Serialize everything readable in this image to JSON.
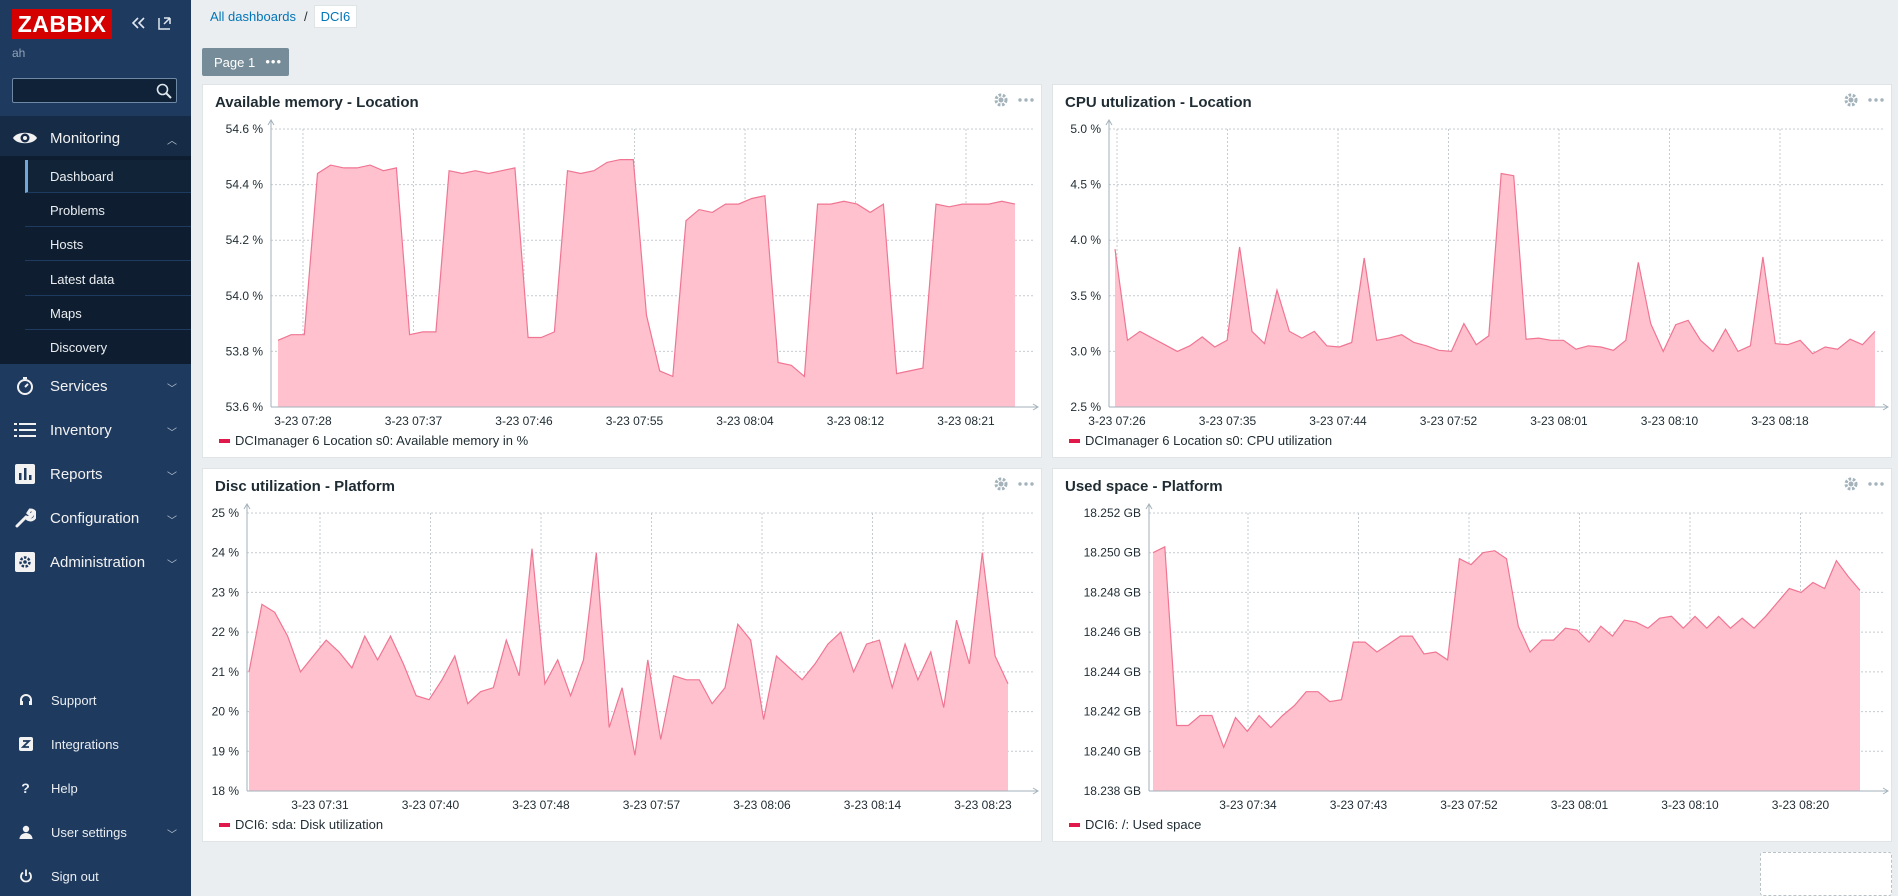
{
  "sidebar": {
    "logo": "ZABBIX",
    "user": "ah",
    "search_placeholder": "",
    "monitoring_label": "Monitoring",
    "submenu": [
      "Dashboard",
      "Problems",
      "Hosts",
      "Latest data",
      "Maps",
      "Discovery"
    ],
    "menu": [
      "Services",
      "Inventory",
      "Reports",
      "Configuration",
      "Administration"
    ],
    "bottom": [
      "Support",
      "Integrations",
      "Help",
      "User settings",
      "Sign out"
    ]
  },
  "breadcrumb": {
    "root": "All dashboards",
    "separator": "/",
    "current": "DCI6"
  },
  "page_tab": {
    "label": "Page 1",
    "menu": "•••"
  },
  "colors": {
    "series": "#e0194a",
    "fill": "#ffc1ce",
    "stroke": "#f07592"
  },
  "widgets": [
    {
      "title": "Available memory - Location",
      "legend": "DCImanager 6 Location s0: Available memory in %"
    },
    {
      "title": "CPU utulization - Location",
      "legend": "DCImanager 6 Location s0: CPU utilization"
    },
    {
      "title": "Disc utilization - Platform",
      "legend": "DCI6: sda: Disk utilization"
    },
    {
      "title": "Used space - Platform",
      "legend": "DCI6: /: Used space"
    }
  ],
  "chart_data": [
    {
      "type": "area",
      "title": "Available memory - Location",
      "ylim": [
        53.6,
        54.6
      ],
      "yticks": [
        "53.6 %",
        "53.8 %",
        "54.0 %",
        "54.2 %",
        "54.4 %",
        "54.6 %"
      ],
      "xticks": [
        "3-23 07:28",
        "3-23 07:37",
        "3-23 07:46",
        "3-23 07:55",
        "3-23 08:04",
        "3-23 08:12",
        "3-23 08:21"
      ],
      "series": [
        {
          "name": "DCImanager 6 Location s0: Available memory in %",
          "values": [
            53.84,
            53.86,
            53.86,
            54.44,
            54.47,
            54.46,
            54.46,
            54.47,
            54.45,
            54.46,
            53.86,
            53.87,
            53.87,
            54.45,
            54.44,
            54.45,
            54.44,
            54.45,
            54.46,
            53.85,
            53.85,
            53.87,
            54.45,
            54.44,
            54.45,
            54.48,
            54.49,
            54.49,
            53.93,
            53.73,
            53.71,
            54.27,
            54.31,
            54.3,
            54.33,
            54.33,
            54.35,
            54.36,
            53.76,
            53.75,
            53.71,
            54.33,
            54.33,
            54.34,
            54.33,
            54.3,
            54.33,
            53.72,
            53.73,
            53.74,
            54.33,
            54.32,
            54.33,
            54.33,
            54.33,
            54.34,
            54.33
          ]
        }
      ]
    },
    {
      "type": "area",
      "title": "CPU utulization - Location",
      "ylim": [
        2.5,
        5.0
      ],
      "yticks": [
        "2.5 %",
        "3.0 %",
        "3.5 %",
        "4.0 %",
        "4.5 %",
        "5.0 %"
      ],
      "xticks": [
        "3-23 07:26",
        "3-23 07:35",
        "3-23 07:44",
        "3-23 07:52",
        "3-23 08:01",
        "3-23 08:10",
        "3-23 08:18"
      ],
      "series": [
        {
          "name": "DCImanager 6 Location s0: CPU utilization",
          "values": [
            3.92,
            3.1,
            3.18,
            3.12,
            3.06,
            3.0,
            3.05,
            3.13,
            3.04,
            3.1,
            3.94,
            3.18,
            3.07,
            3.55,
            3.18,
            3.12,
            3.18,
            3.05,
            3.04,
            3.08,
            3.84,
            3.1,
            3.12,
            3.15,
            3.08,
            3.05,
            3.01,
            3.0,
            3.25,
            3.06,
            3.14,
            4.6,
            4.58,
            3.11,
            3.12,
            3.1,
            3.1,
            3.02,
            3.05,
            3.04,
            3.01,
            3.1,
            3.8,
            3.25,
            3.0,
            3.24,
            3.28,
            3.1,
            3.0,
            3.2,
            3.0,
            3.05,
            3.85,
            3.07,
            3.06,
            3.1,
            2.98,
            3.04,
            3.02,
            3.11,
            3.06,
            3.18
          ]
        }
      ]
    },
    {
      "type": "area",
      "title": "Disc utilization - Platform",
      "ylim": [
        18,
        25
      ],
      "yticks": [
        "18 %",
        "19 %",
        "20 %",
        "21 %",
        "22 %",
        "23 %",
        "24 %",
        "25 %"
      ],
      "xticks": [
        "3-23 07:31",
        "3-23 07:40",
        "3-23 07:48",
        "3-23 07:57",
        "3-23 08:06",
        "3-23 08:14",
        "3-23 08:23"
      ],
      "series": [
        {
          "name": "DCI6: sda: Disk utilization",
          "values": [
            21.0,
            22.7,
            22.5,
            21.9,
            21.0,
            21.4,
            21.8,
            21.5,
            21.1,
            21.9,
            21.3,
            21.9,
            21.2,
            20.4,
            20.3,
            20.8,
            21.4,
            20.2,
            20.5,
            20.6,
            21.8,
            20.9,
            24.1,
            20.7,
            21.3,
            20.4,
            21.3,
            24.0,
            19.6,
            20.6,
            18.9,
            21.3,
            19.3,
            20.9,
            20.8,
            20.8,
            20.2,
            20.6,
            22.2,
            21.8,
            19.8,
            21.4,
            21.1,
            20.8,
            21.2,
            21.7,
            22.0,
            21.0,
            21.7,
            21.8,
            20.6,
            21.7,
            20.8,
            21.5,
            20.1,
            22.3,
            21.2,
            24.0,
            21.4,
            20.7
          ]
        }
      ]
    },
    {
      "type": "area",
      "title": "Used space - Platform",
      "ylim": [
        18.238,
        18.252
      ],
      "yticks": [
        "18.238 GB",
        "18.240 GB",
        "18.242 GB",
        "18.244 GB",
        "18.246 GB",
        "18.248 GB",
        "18.250 GB",
        "18.252 GB"
      ],
      "xticks": [
        "3-23 07:34",
        "3-23 07:43",
        "3-23 07:52",
        "3-23 08:01",
        "3-23 08:10",
        "3-23 08:20"
      ],
      "series": [
        {
          "name": "DCI6: /: Used space",
          "values": [
            18.25,
            18.2503,
            18.2413,
            18.2413,
            18.2418,
            18.2418,
            18.2402,
            18.2417,
            18.241,
            18.2418,
            18.2412,
            18.2418,
            18.2423,
            18.243,
            18.243,
            18.2425,
            18.2426,
            18.2455,
            18.2455,
            18.245,
            18.2454,
            18.2458,
            18.2458,
            18.2449,
            18.245,
            18.2446,
            18.2497,
            18.2494,
            18.25,
            18.2501,
            18.2497,
            18.2463,
            18.245,
            18.2456,
            18.2456,
            18.2462,
            18.2461,
            18.2455,
            18.2463,
            18.2458,
            18.2466,
            18.2465,
            18.2462,
            18.2467,
            18.2468,
            18.2462,
            18.2468,
            18.2462,
            18.2468,
            18.2462,
            18.2467,
            18.2462,
            18.2468,
            18.2475,
            18.2482,
            18.248,
            18.2485,
            18.2482,
            18.2496,
            18.2488,
            18.2481
          ]
        }
      ]
    }
  ]
}
